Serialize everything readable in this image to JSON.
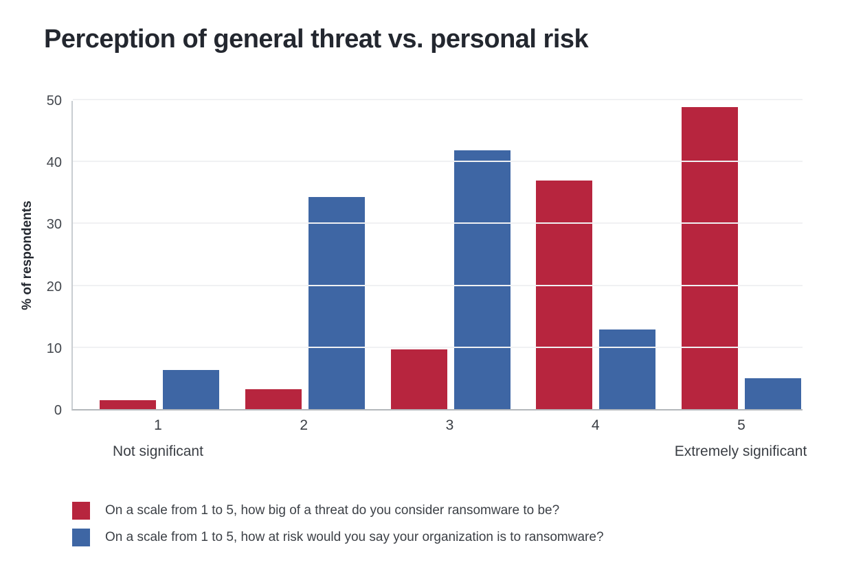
{
  "chart": {
    "title": "Perception of general threat vs. personal risk"
  },
  "chart_data": {
    "type": "bar",
    "title": "Perception of general threat vs. personal risk",
    "ylabel": "% of respondents",
    "xlabel": "",
    "categories": [
      "1",
      "2",
      "3",
      "4",
      "5"
    ],
    "series": [
      {
        "name": "On a scale from 1 to 5, how big of a threat do you consider ransomware to be?",
        "color": "#b7253e",
        "values": [
          1.4,
          3.2,
          9.6,
          36.9,
          48.8
        ]
      },
      {
        "name": "On a scale from 1 to 5, how at risk would you say your organization is to ransomware?",
        "color": "#3e66a4",
        "values": [
          6.3,
          34.3,
          41.8,
          12.9,
          5.0
        ]
      }
    ],
    "axis_caption_left": "Not significant",
    "axis_caption_right": "Extremely significant",
    "ylim": [
      0,
      50
    ],
    "y_ticks": [
      0,
      10,
      20,
      30,
      40,
      50
    ],
    "grid": "horizontal",
    "legend_position": "bottom-left"
  }
}
